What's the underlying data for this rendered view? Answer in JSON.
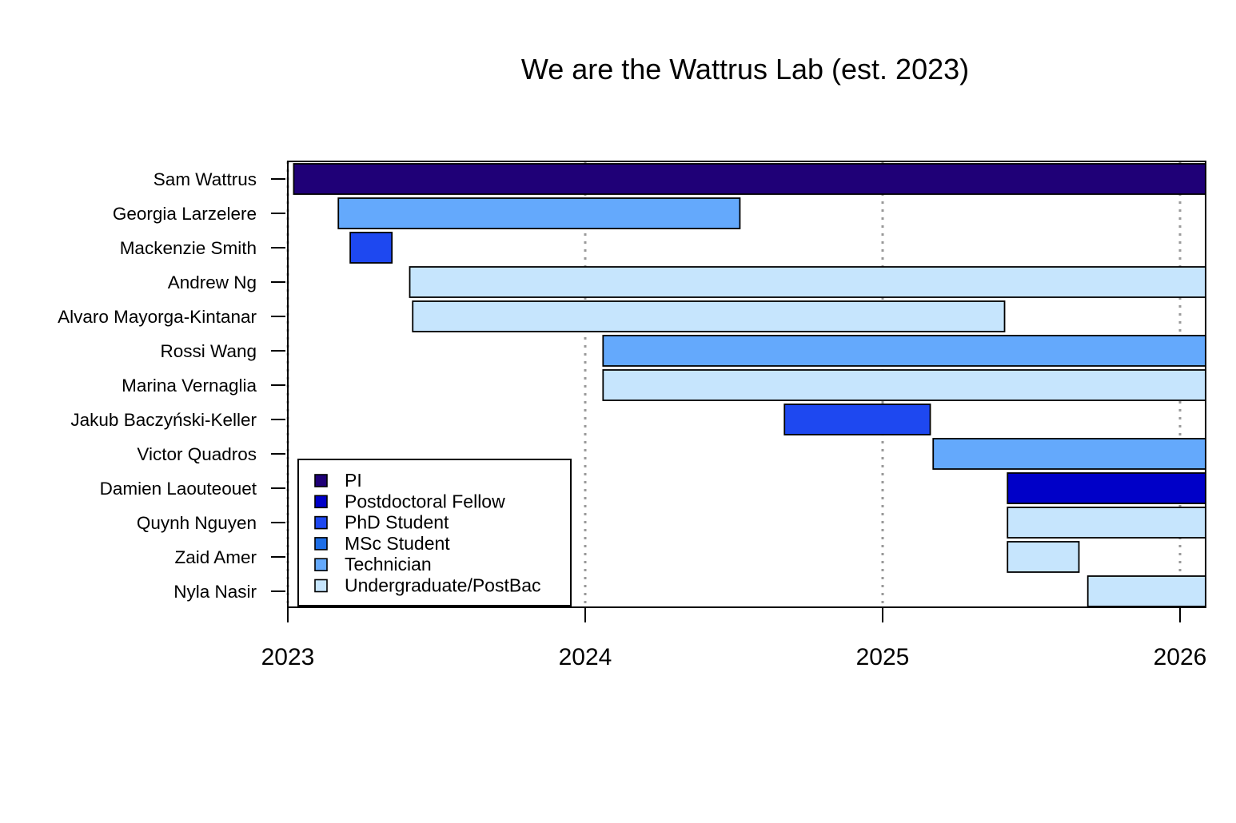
{
  "chart_data": {
    "type": "bar",
    "orientation": "horizontal-timeline",
    "title": "We are the Wattrus Lab (est. 2023)",
    "xlabel": "",
    "ylabel": "",
    "xlim": [
      2023.0,
      2026.09
    ],
    "x_ticks": [
      2023,
      2024,
      2025,
      2026
    ],
    "x_tick_labels": [
      "2023",
      "2024",
      "2025",
      "2026"
    ],
    "grid": "vertical dotted lines at x ticks",
    "legend_position": "bottom-left",
    "legend": [
      {
        "role": "PI",
        "label": "PI",
        "color": "#1F0077"
      },
      {
        "role": "Postdoctoral Fellow",
        "label": "Postdoctoral Fellow",
        "color": "#0000C8"
      },
      {
        "role": "PhD Student",
        "label": "PhD Student",
        "color": "#1E48F0"
      },
      {
        "role": "MSc Student",
        "label": "MSc Student",
        "color": "#1E6EE6"
      },
      {
        "role": "Technician",
        "label": "Technician",
        "color": "#64A9FC"
      },
      {
        "role": "Undergraduate/PostBac",
        "label": "Undergraduate/PostBac",
        "color": "#C6E5FD"
      }
    ],
    "members": [
      {
        "name": "Sam Wattrus",
        "role": "PI",
        "start": 2023.02,
        "end": 2026.09
      },
      {
        "name": "Georgia Larzelere",
        "role": "Technician",
        "start": 2023.17,
        "end": 2024.52
      },
      {
        "name": "Mackenzie Smith",
        "role": "PhD Student",
        "start": 2023.21,
        "end": 2023.35
      },
      {
        "name": "Andrew Ng",
        "role": "Undergraduate/PostBac",
        "start": 2023.41,
        "end": 2026.09
      },
      {
        "name": "Alvaro Mayorga-Kintanar",
        "role": "Undergraduate/PostBac",
        "start": 2023.42,
        "end": 2025.41
      },
      {
        "name": "Rossi Wang",
        "role": "Technician",
        "start": 2024.06,
        "end": 2026.09
      },
      {
        "name": "Marina Vernaglia",
        "role": "Undergraduate/PostBac",
        "start": 2024.06,
        "end": 2026.09
      },
      {
        "name": "Jakub Baczyński-Keller",
        "role": "PhD Student",
        "start": 2024.67,
        "end": 2025.16
      },
      {
        "name": "Victor Quadros",
        "role": "Technician",
        "start": 2025.17,
        "end": 2026.09
      },
      {
        "name": "Damien Laouteouet",
        "role": "Postdoctoral Fellow",
        "start": 2025.42,
        "end": 2026.09
      },
      {
        "name": "Quynh Nguyen",
        "role": "Undergraduate/PostBac",
        "start": 2025.42,
        "end": 2026.09
      },
      {
        "name": "Zaid Amer",
        "role": "Undergraduate/PostBac",
        "start": 2025.42,
        "end": 2025.66
      },
      {
        "name": "Nyla Nasir",
        "role": "Undergraduate/PostBac",
        "start": 2025.69,
        "end": 2026.09
      }
    ]
  }
}
